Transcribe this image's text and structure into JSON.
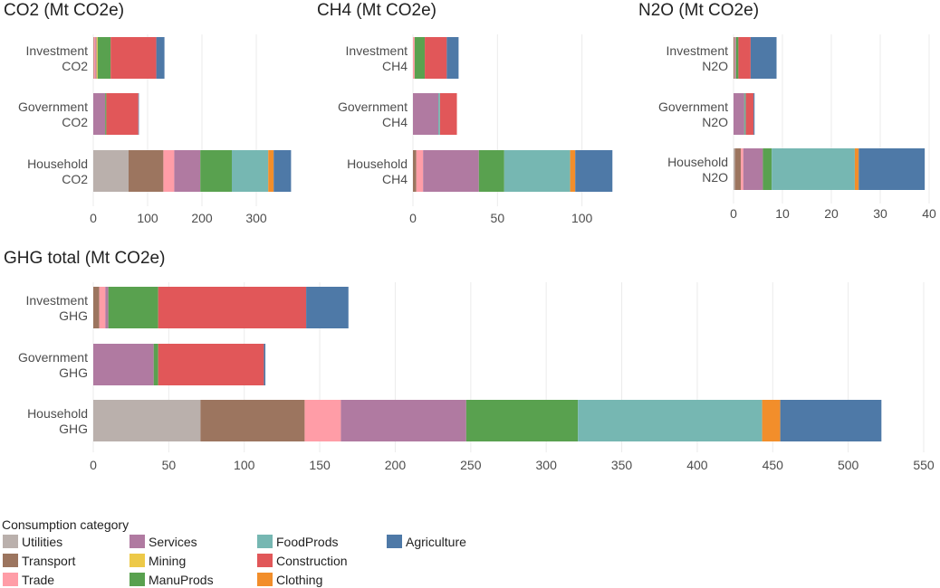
{
  "legend": {
    "title": "Consumption category",
    "items": [
      {
        "name": "Utilities",
        "color": "#BAB0AC"
      },
      {
        "name": "Transport",
        "color": "#9C755F"
      },
      {
        "name": "Trade",
        "color": "#FF9DA7"
      },
      {
        "name": "Services",
        "color": "#B07AA1"
      },
      {
        "name": "Mining",
        "color": "#EDC948"
      },
      {
        "name": "ManuProds",
        "color": "#59A14F"
      },
      {
        "name": "FoodProds",
        "color": "#76B7B2"
      },
      {
        "name": "Construction",
        "color": "#E15759"
      },
      {
        "name": "Clothing",
        "color": "#F28E2B"
      },
      {
        "name": "Agriculture",
        "color": "#4E79A7"
      }
    ]
  },
  "chart_data": [
    {
      "id": "co2",
      "type": "bar",
      "orientation": "horizontal",
      "stacked": true,
      "title": "CO2 (Mt CO2e)",
      "xlim": [
        0,
        370
      ],
      "ticks": [
        0,
        100,
        200,
        300
      ],
      "tick_labels": [
        "0",
        "100",
        "200",
        "300"
      ],
      "categories": [
        {
          "l1": "Investment",
          "l2": "CO2"
        },
        {
          "l1": "Government",
          "l2": "CO2"
        },
        {
          "l1": "Household",
          "l2": "CO2"
        }
      ],
      "series": [
        {
          "name": "Utilities",
          "values": [
            0,
            0,
            65
          ]
        },
        {
          "name": "Transport",
          "values": [
            1,
            0,
            64
          ]
        },
        {
          "name": "Trade",
          "values": [
            3,
            0,
            20
          ]
        },
        {
          "name": "Services",
          "values": [
            2,
            22,
            48
          ]
        },
        {
          "name": "Mining",
          "values": [
            2,
            0,
            0
          ]
        },
        {
          "name": "ManuProds",
          "values": [
            24,
            2,
            58
          ]
        },
        {
          "name": "FoodProds",
          "values": [
            0,
            0,
            67
          ]
        },
        {
          "name": "Construction",
          "values": [
            84,
            59,
            0
          ]
        },
        {
          "name": "Clothing",
          "values": [
            0,
            0,
            10
          ]
        },
        {
          "name": "Agriculture",
          "values": [
            15,
            1,
            32
          ]
        }
      ]
    },
    {
      "id": "ch4",
      "type": "bar",
      "orientation": "horizontal",
      "stacked": true,
      "title": "CH4 (Mt CO2e)",
      "xlim": [
        0,
        120
      ],
      "ticks": [
        0,
        50,
        100
      ],
      "tick_labels": [
        "0",
        "50",
        "100"
      ],
      "categories": [
        {
          "l1": "Investment",
          "l2": "CH4"
        },
        {
          "l1": "Government",
          "l2": "CH4"
        },
        {
          "l1": "Household",
          "l2": "CH4"
        }
      ],
      "series": [
        {
          "name": "Utilities",
          "values": [
            0,
            0,
            0
          ]
        },
        {
          "name": "Transport",
          "values": [
            0,
            0,
            2
          ]
        },
        {
          "name": "Trade",
          "values": [
            1,
            0,
            4
          ]
        },
        {
          "name": "Services",
          "values": [
            0,
            15,
            33
          ]
        },
        {
          "name": "Mining",
          "values": [
            0,
            0,
            0
          ]
        },
        {
          "name": "ManuProds",
          "values": [
            6,
            0,
            15
          ]
        },
        {
          "name": "FoodProds",
          "values": [
            0,
            1,
            39
          ]
        },
        {
          "name": "Construction",
          "values": [
            13,
            10,
            0
          ]
        },
        {
          "name": "Clothing",
          "values": [
            0,
            0,
            3
          ]
        },
        {
          "name": "Agriculture",
          "values": [
            7,
            0,
            22
          ]
        }
      ]
    },
    {
      "id": "n2o",
      "type": "bar",
      "orientation": "horizontal",
      "stacked": true,
      "title": "N2O (Mt CO2e)",
      "xlim": [
        0,
        40
      ],
      "ticks": [
        0,
        10,
        20,
        30,
        40
      ],
      "tick_labels": [
        "0",
        "10",
        "20",
        "30",
        "40"
      ],
      "categories": [
        {
          "l1": "Investment",
          "l2": "N2O"
        },
        {
          "l1": "Government",
          "l2": "N2O"
        },
        {
          "l1": "Household",
          "l2": "N2O"
        }
      ],
      "series": [
        {
          "name": "Utilities",
          "values": [
            0,
            0,
            0.3
          ]
        },
        {
          "name": "Transport",
          "values": [
            0.2,
            0,
            1.2
          ]
        },
        {
          "name": "Trade",
          "values": [
            0.1,
            0,
            0.5
          ]
        },
        {
          "name": "Services",
          "values": [
            0.2,
            2.2,
            4
          ]
        },
        {
          "name": "Mining",
          "values": [
            0,
            0,
            0
          ]
        },
        {
          "name": "ManuProds",
          "values": [
            0.5,
            0.1,
            1.8
          ]
        },
        {
          "name": "FoodProds",
          "values": [
            0,
            0.2,
            17
          ]
        },
        {
          "name": "Construction",
          "values": [
            2.5,
            1.6,
            0
          ]
        },
        {
          "name": "Clothing",
          "values": [
            0,
            0,
            0.8
          ]
        },
        {
          "name": "Agriculture",
          "values": [
            5.3,
            0.2,
            13.5
          ]
        }
      ]
    },
    {
      "id": "ghg",
      "type": "bar",
      "orientation": "horizontal",
      "stacked": true,
      "title": "GHG total (Mt CO2e)",
      "xlim": [
        0,
        550
      ],
      "ticks": [
        0,
        50,
        100,
        150,
        200,
        250,
        300,
        350,
        400,
        450,
        500,
        550
      ],
      "tick_labels": [
        "0",
        "50",
        "100",
        "150",
        "200",
        "250",
        "300",
        "350",
        "400",
        "450",
        "500",
        "550"
      ],
      "categories": [
        {
          "l1": "Investment",
          "l2": "GHG"
        },
        {
          "l1": "Government",
          "l2": "GHG"
        },
        {
          "l1": "Household",
          "l2": "GHG"
        }
      ],
      "series": [
        {
          "name": "Utilities",
          "values": [
            0,
            0,
            71
          ]
        },
        {
          "name": "Transport",
          "values": [
            4,
            0,
            69
          ]
        },
        {
          "name": "Trade",
          "values": [
            4,
            0,
            24
          ]
        },
        {
          "name": "Services",
          "values": [
            2,
            40,
            83
          ]
        },
        {
          "name": "Mining",
          "values": [
            0,
            0,
            0
          ]
        },
        {
          "name": "ManuProds",
          "values": [
            33,
            3,
            74
          ]
        },
        {
          "name": "FoodProds",
          "values": [
            0,
            0,
            122
          ]
        },
        {
          "name": "Construction",
          "values": [
            98,
            70,
            0
          ]
        },
        {
          "name": "Clothing",
          "values": [
            0,
            0,
            12
          ]
        },
        {
          "name": "Agriculture",
          "values": [
            28,
            1,
            67
          ]
        }
      ]
    }
  ]
}
